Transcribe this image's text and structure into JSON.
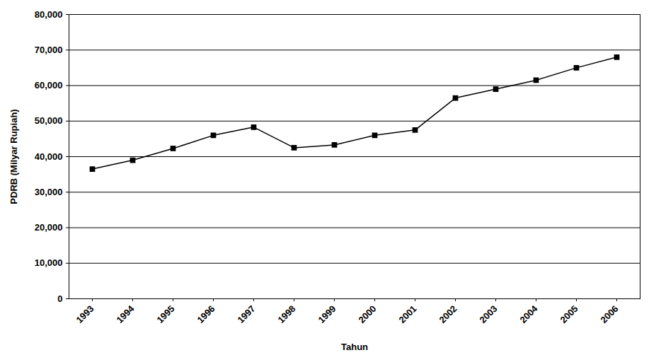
{
  "chart_data": {
    "type": "line",
    "x_label": "Tahun",
    "y_label": "PDRB (Milyar Rupiah)",
    "categories": [
      "1993",
      "1994",
      "1995",
      "1996",
      "1997",
      "1998",
      "1999",
      "2000",
      "2001",
      "2002",
      "2003",
      "2004",
      "2005",
      "2006"
    ],
    "values": [
      36500,
      39000,
      42300,
      46000,
      48300,
      42500,
      43300,
      46000,
      47500,
      56500,
      59000,
      61500,
      65000,
      68000
    ],
    "color": "#000000",
    "marker": "square",
    "ylim": [
      0,
      80000
    ],
    "yticks": [
      0,
      {
        "value": 10000,
        "label": "10,000"
      },
      {
        "value": 20000,
        "label": "20,000"
      },
      {
        "value": 30000,
        "label": "30,000"
      },
      {
        "value": 40000,
        "label": "40,000"
      },
      {
        "value": 50000,
        "label": "50,000"
      },
      {
        "value": 60000,
        "label": "60,000"
      },
      {
        "value": 70000,
        "label": "70,000"
      },
      {
        "value": 80000,
        "label": "80,000"
      }
    ],
    "grid": true
  }
}
